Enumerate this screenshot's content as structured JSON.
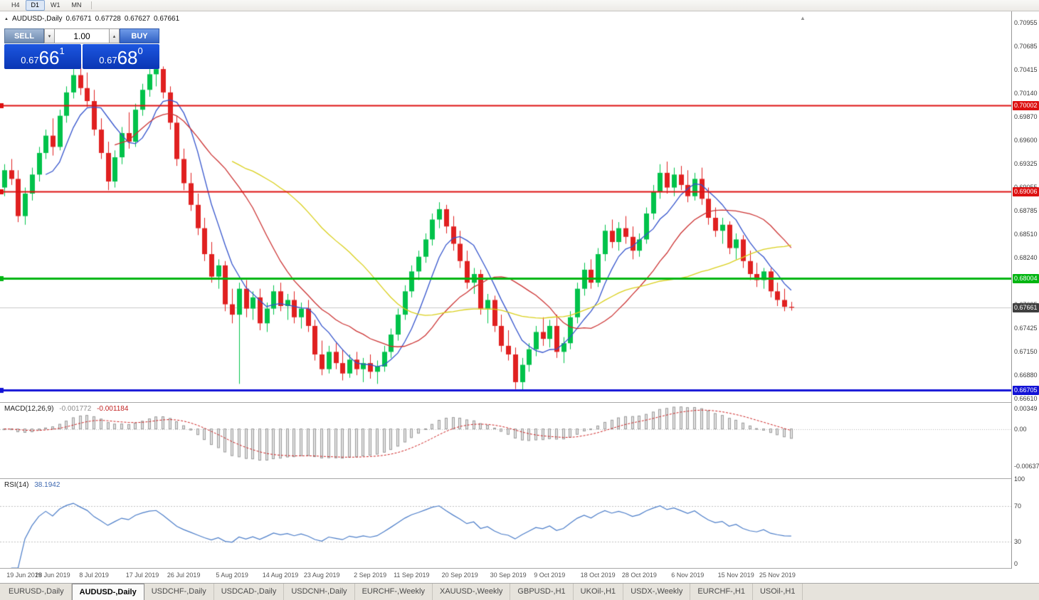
{
  "toolbar": {
    "timeframes": [
      {
        "label": "H4",
        "active": false
      },
      {
        "label": "D1",
        "active": true
      },
      {
        "label": "W1",
        "active": false
      },
      {
        "label": "MN",
        "active": false
      }
    ]
  },
  "icons": {
    "collapse": "▲",
    "spin_up": "▴",
    "spin_down": "▾",
    "shift_marker": "▲"
  },
  "chart_header": {
    "symbol": "AUDUSD-,Daily",
    "open": "0.67671",
    "high": "0.67728",
    "low": "0.67627",
    "close": "0.67661"
  },
  "one_click": {
    "sell_label": "SELL",
    "buy_label": "BUY",
    "volume": "1.00",
    "sell_price": {
      "base": "0.67",
      "big": "66",
      "sup": "1"
    },
    "buy_price": {
      "base": "0.67",
      "big": "68",
      "sup": "0"
    }
  },
  "price_axis": {
    "labels": [
      "0.70955",
      "0.70685",
      "0.70415",
      "0.70140",
      "0.69870",
      "0.69600",
      "0.69325",
      "0.69055",
      "0.68785",
      "0.68510",
      "0.68240",
      "0.67970",
      "0.67695",
      "0.67425",
      "0.67150",
      "0.66880",
      "0.66610"
    ]
  },
  "level_lines": [
    {
      "price": 0.70002,
      "label": "0.70002",
      "color": "#dd1111",
      "width": 2
    },
    {
      "price": 0.69006,
      "label": "0.69006",
      "color": "#dd1111",
      "width": 2
    },
    {
      "price": 0.68004,
      "label": "0.68004",
      "color": "#00b511",
      "width": 3
    },
    {
      "price": 0.66705,
      "label": "0.66705",
      "color": "#1212d6",
      "width": 3
    }
  ],
  "bid": {
    "price": 0.67661,
    "label": "0.67661",
    "line_color": "#c8c8c8",
    "tag_bg": "#3f3f3f"
  },
  "macd_panel": {
    "title": "MACD(12,26,9)",
    "value1": "-0.001772",
    "value2": "-0.001184",
    "params": {
      "fast": 12,
      "slow": 26,
      "signal": 9
    },
    "range": {
      "top": 0.0045,
      "bottom": -0.0085
    },
    "axis_labels": [
      {
        "v": 0.00349,
        "t": "0.00349"
      },
      {
        "v": 0,
        "t": "0.00"
      },
      {
        "v": -0.00637,
        "t": "-0.00637"
      }
    ],
    "histogram_color": "#e2e2e2",
    "histogram_border": "#9a9a9a",
    "signal_color": "#cc2222"
  },
  "rsi_panel": {
    "title": "RSI(14)",
    "value": "38.1942",
    "period": 14,
    "levels": [
      70,
      30
    ],
    "line_color": "#4a7cc8",
    "axis_labels": [
      {
        "v": 100,
        "t": "100"
      },
      {
        "v": 70,
        "t": "70"
      },
      {
        "v": 30,
        "t": "30"
      },
      {
        "v": 0,
        "t": "0"
      }
    ]
  },
  "date_axis": {
    "labels": [
      {
        "i": 0,
        "t": "19 Jun 2019"
      },
      {
        "i": 7,
        "t": "28 Jun 2019"
      },
      {
        "i": 13,
        "t": "8 Jul 2019"
      },
      {
        "i": 20,
        "t": "17 Jul 2019"
      },
      {
        "i": 26,
        "t": "26 Jul 2019"
      },
      {
        "i": 33,
        "t": "5 Aug 2019"
      },
      {
        "i": 40,
        "t": "14 Aug 2019"
      },
      {
        "i": 46,
        "t": "23 Aug 2019"
      },
      {
        "i": 53,
        "t": "2 Sep 2019"
      },
      {
        "i": 59,
        "t": "11 Sep 2019"
      },
      {
        "i": 66,
        "t": "20 Sep 2019"
      },
      {
        "i": 73,
        "t": "30 Sep 2019"
      },
      {
        "i": 79,
        "t": "9 Oct 2019"
      },
      {
        "i": 86,
        "t": "18 Oct 2019"
      },
      {
        "i": 92,
        "t": "28 Oct 2019"
      },
      {
        "i": 99,
        "t": "6 Nov 2019"
      },
      {
        "i": 106,
        "t": "15 Nov 2019"
      },
      {
        "i": 112,
        "t": "25 Nov 2019"
      }
    ]
  },
  "tabs": {
    "active": 1,
    "items": [
      "EURUSD-,Daily",
      "AUDUSD-,Daily",
      "USDCHF-,Daily",
      "USDCAD-,Daily",
      "USDCNH-,Daily",
      "EURCHF-,Weekly",
      "XAUUSD-,Weekly",
      "GBPUSD-,H1",
      "UKOil-,H1",
      "USDX-,Weekly",
      "EURCHF-,H1",
      "USOil-,H1"
    ],
    "note": "bottom chart tabs, AUDUSD-,Daily is active"
  },
  "chart_data": {
    "type": "candlestick",
    "symbol": "AUDUSD-",
    "timeframe": "Daily",
    "title": "AUDUSD- Daily with MACD(12,26,9) and RSI(14)",
    "ylim": [
      0.6661,
      0.70955
    ],
    "colors": {
      "up": "#00c24a",
      "down": "#e02020"
    },
    "ma": [
      {
        "period": 7,
        "color": "#3353cc"
      },
      {
        "period": 17,
        "color": "#cc3333"
      },
      {
        "period": 34,
        "color": "#d9cf1a"
      }
    ],
    "layout": {
      "x0": 6,
      "dx": 9.7,
      "body_w": 7,
      "p_top": 0.71087,
      "p_scale": 8.23e-05
    },
    "candles": [
      [
        0.6905,
        0.6932,
        0.6895,
        0.6925
      ],
      [
        0.6925,
        0.6938,
        0.6908,
        0.6915
      ],
      [
        0.6915,
        0.6925,
        0.6865,
        0.6872
      ],
      [
        0.6872,
        0.6905,
        0.6862,
        0.6898
      ],
      [
        0.6898,
        0.6928,
        0.689,
        0.692
      ],
      [
        0.692,
        0.6952,
        0.6912,
        0.6945
      ],
      [
        0.6945,
        0.6972,
        0.6938,
        0.6965
      ],
      [
        0.6965,
        0.6985,
        0.6942,
        0.6952
      ],
      [
        0.6952,
        0.6995,
        0.6948,
        0.6988
      ],
      [
        0.6988,
        0.7022,
        0.698,
        0.7015
      ],
      [
        0.7015,
        0.7042,
        0.7008,
        0.7035
      ],
      [
        0.7035,
        0.7048,
        0.7012,
        0.702
      ],
      [
        0.702,
        0.7038,
        0.6998,
        0.7005
      ],
      [
        0.7005,
        0.7018,
        0.6965,
        0.6972
      ],
      [
        0.6972,
        0.6985,
        0.6938,
        0.6945
      ],
      [
        0.6945,
        0.6958,
        0.6902,
        0.6912
      ],
      [
        0.6912,
        0.6948,
        0.6905,
        0.694
      ],
      [
        0.694,
        0.6975,
        0.6932,
        0.6968
      ],
      [
        0.6968,
        0.6992,
        0.695,
        0.6958
      ],
      [
        0.6958,
        0.7002,
        0.6952,
        0.6995
      ],
      [
        0.6995,
        0.7025,
        0.6988,
        0.7018
      ],
      [
        0.7018,
        0.7042,
        0.701,
        0.7036
      ],
      [
        0.7036,
        0.7048,
        0.7022,
        0.7042
      ],
      [
        0.7042,
        0.7045,
        0.7008,
        0.7015
      ],
      [
        0.7015,
        0.7022,
        0.6972,
        0.698
      ],
      [
        0.698,
        0.6988,
        0.693,
        0.6938
      ],
      [
        0.6938,
        0.695,
        0.6902,
        0.691
      ],
      [
        0.691,
        0.6922,
        0.6878,
        0.6885
      ],
      [
        0.6885,
        0.6898,
        0.685,
        0.6858
      ],
      [
        0.6858,
        0.687,
        0.682,
        0.6828
      ],
      [
        0.6828,
        0.6842,
        0.6795,
        0.6802
      ],
      [
        0.6802,
        0.6822,
        0.6788,
        0.6815
      ],
      [
        0.6815,
        0.682,
        0.6762,
        0.677
      ],
      [
        0.677,
        0.6788,
        0.6748,
        0.6758
      ],
      [
        0.6758,
        0.6795,
        0.6678,
        0.6788
      ],
      [
        0.6788,
        0.6798,
        0.6755,
        0.6765
      ],
      [
        0.6765,
        0.6785,
        0.6752,
        0.6778
      ],
      [
        0.6778,
        0.6788,
        0.674,
        0.6748
      ],
      [
        0.6748,
        0.6772,
        0.6738,
        0.6765
      ],
      [
        0.6765,
        0.6792,
        0.6758,
        0.6785
      ],
      [
        0.6785,
        0.6795,
        0.6762,
        0.6768
      ],
      [
        0.6768,
        0.6782,
        0.6752,
        0.6775
      ],
      [
        0.6775,
        0.6785,
        0.6748,
        0.6755
      ],
      [
        0.6755,
        0.6772,
        0.6742,
        0.6765
      ],
      [
        0.6765,
        0.6775,
        0.6738,
        0.6745
      ],
      [
        0.6745,
        0.6752,
        0.6705,
        0.6712
      ],
      [
        0.6712,
        0.6728,
        0.6688,
        0.6695
      ],
      [
        0.6695,
        0.6722,
        0.669,
        0.6715
      ],
      [
        0.6715,
        0.6725,
        0.6695,
        0.6702
      ],
      [
        0.6702,
        0.6718,
        0.6682,
        0.669
      ],
      [
        0.669,
        0.6712,
        0.6685,
        0.6706
      ],
      [
        0.6706,
        0.6715,
        0.6688,
        0.6695
      ],
      [
        0.6695,
        0.6708,
        0.668,
        0.6702
      ],
      [
        0.6702,
        0.6712,
        0.6684,
        0.6692
      ],
      [
        0.6692,
        0.6705,
        0.6678,
        0.6698
      ],
      [
        0.6698,
        0.6722,
        0.6692,
        0.6715
      ],
      [
        0.6715,
        0.6742,
        0.6708,
        0.6735
      ],
      [
        0.6735,
        0.6765,
        0.6728,
        0.6758
      ],
      [
        0.6758,
        0.6792,
        0.6752,
        0.6785
      ],
      [
        0.6785,
        0.6815,
        0.6778,
        0.6808
      ],
      [
        0.6808,
        0.6832,
        0.6798,
        0.6825
      ],
      [
        0.6825,
        0.6852,
        0.6818,
        0.6845
      ],
      [
        0.6845,
        0.6875,
        0.6838,
        0.6868
      ],
      [
        0.6868,
        0.6888,
        0.6858,
        0.688
      ],
      [
        0.688,
        0.6885,
        0.6852,
        0.686
      ],
      [
        0.686,
        0.6872,
        0.6832,
        0.684
      ],
      [
        0.684,
        0.6855,
        0.6812,
        0.682
      ],
      [
        0.682,
        0.6832,
        0.6788,
        0.6795
      ],
      [
        0.6795,
        0.6812,
        0.6782,
        0.6805
      ],
      [
        0.6805,
        0.681,
        0.6758,
        0.6765
      ],
      [
        0.6765,
        0.6782,
        0.6748,
        0.6775
      ],
      [
        0.6775,
        0.678,
        0.6738,
        0.6745
      ],
      [
        0.6745,
        0.6758,
        0.6715,
        0.6722
      ],
      [
        0.6722,
        0.674,
        0.6705,
        0.6712
      ],
      [
        0.6712,
        0.672,
        0.6672,
        0.668
      ],
      [
        0.668,
        0.6708,
        0.6671,
        0.67
      ],
      [
        0.67,
        0.6725,
        0.6692,
        0.6718
      ],
      [
        0.6718,
        0.6745,
        0.671,
        0.6738
      ],
      [
        0.6738,
        0.6755,
        0.6722,
        0.673
      ],
      [
        0.673,
        0.6752,
        0.672,
        0.6745
      ],
      [
        0.6745,
        0.6758,
        0.6708,
        0.6715
      ],
      [
        0.6715,
        0.6732,
        0.6702,
        0.6725
      ],
      [
        0.6725,
        0.6762,
        0.6718,
        0.6755
      ],
      [
        0.6755,
        0.6795,
        0.6748,
        0.6788
      ],
      [
        0.6788,
        0.6818,
        0.678,
        0.681
      ],
      [
        0.681,
        0.6822,
        0.6788,
        0.6795
      ],
      [
        0.6795,
        0.6835,
        0.679,
        0.6828
      ],
      [
        0.6828,
        0.6862,
        0.682,
        0.6855
      ],
      [
        0.6855,
        0.6868,
        0.6835,
        0.6842
      ],
      [
        0.6842,
        0.6865,
        0.6832,
        0.6858
      ],
      [
        0.6858,
        0.6872,
        0.684,
        0.6848
      ],
      [
        0.6848,
        0.686,
        0.6822,
        0.6832
      ],
      [
        0.6832,
        0.6852,
        0.6825,
        0.6845
      ],
      [
        0.6845,
        0.6882,
        0.684,
        0.6875
      ],
      [
        0.6875,
        0.6908,
        0.6868,
        0.69
      ],
      [
        0.69,
        0.6932,
        0.6892,
        0.6922
      ],
      [
        0.6922,
        0.6935,
        0.6898,
        0.6905
      ],
      [
        0.6905,
        0.6928,
        0.6895,
        0.692
      ],
      [
        0.692,
        0.693,
        0.6902,
        0.6908
      ],
      [
        0.6908,
        0.6925,
        0.6888,
        0.6895
      ],
      [
        0.6895,
        0.6922,
        0.689,
        0.6915
      ],
      [
        0.6915,
        0.6928,
        0.6885,
        0.6892
      ],
      [
        0.6892,
        0.6905,
        0.6862,
        0.687
      ],
      [
        0.687,
        0.6882,
        0.6848,
        0.6855
      ],
      [
        0.6855,
        0.687,
        0.684,
        0.6862
      ],
      [
        0.6862,
        0.6866,
        0.6828,
        0.6835
      ],
      [
        0.6835,
        0.6852,
        0.6822,
        0.6845
      ],
      [
        0.6845,
        0.685,
        0.6812,
        0.682
      ],
      [
        0.682,
        0.6832,
        0.6798,
        0.6805
      ],
      [
        0.6805,
        0.6818,
        0.679,
        0.6798
      ],
      [
        0.6798,
        0.6812,
        0.6788,
        0.6808
      ],
      [
        0.6808,
        0.6812,
        0.6778,
        0.6785
      ],
      [
        0.6785,
        0.6795,
        0.6768,
        0.6775
      ],
      [
        0.6775,
        0.6788,
        0.6762,
        0.67671
      ],
      [
        0.67671,
        0.67728,
        0.67627,
        0.67661
      ]
    ]
  }
}
